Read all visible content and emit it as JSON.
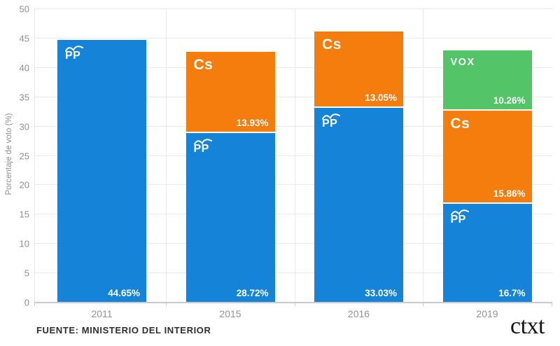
{
  "chart_data": {
    "type": "bar",
    "stacked": true,
    "title": "",
    "xlabel": "",
    "ylabel": "Porcentaje de voto (%)",
    "ylim": [
      0,
      50
    ],
    "ytick_step": 5,
    "grid": true,
    "legend_position": "none (party labels drawn inside segments)",
    "categories": [
      "2011",
      "2015",
      "2016",
      "2019"
    ],
    "series": [
      {
        "name": "PP",
        "color": "#1583d7",
        "values": [
          44.65,
          28.72,
          33.03,
          16.7
        ],
        "labels": [
          "44.65%",
          "28.72%",
          "33.03%",
          "16.7%"
        ]
      },
      {
        "name": "Cs",
        "color": "#f57d0d",
        "values": [
          null,
          13.93,
          13.05,
          15.86
        ],
        "labels": [
          null,
          "13.93%",
          "13.05%",
          "15.86%"
        ]
      },
      {
        "name": "VOX",
        "color": "#53c468",
        "values": [
          null,
          null,
          null,
          10.26
        ],
        "labels": [
          null,
          null,
          null,
          "10.26%"
        ]
      }
    ]
  },
  "footer": {
    "source": "FUENTE: MINISTERIO DEL INTERIOR",
    "brand": "ctxt"
  }
}
